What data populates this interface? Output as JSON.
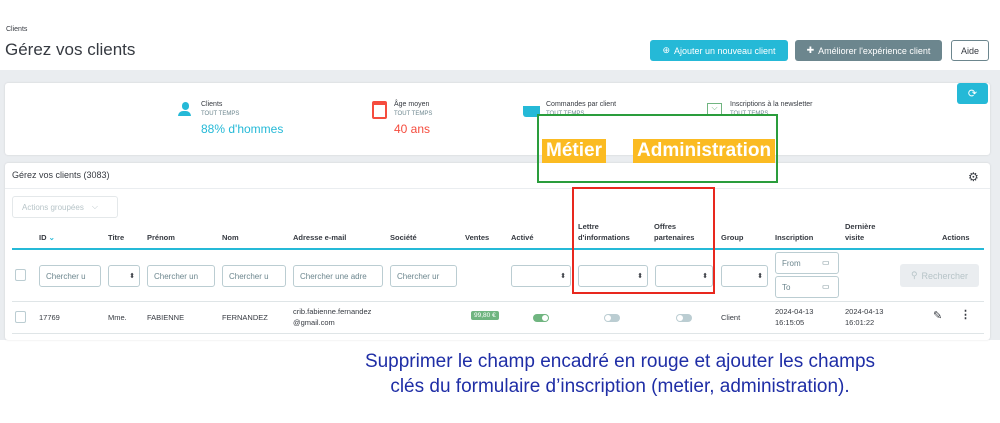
{
  "breadcrumb": "Clients",
  "page_title": "Gérez vos clients",
  "toolbar": {
    "add": "Ajouter un nouveau client",
    "improve": "Améliorer l'expérience client",
    "help": "Aide"
  },
  "kpis": [
    {
      "label": "Clients",
      "period": "TOUT TEMPS",
      "value": "88% d'hommes",
      "icon": "user-icon",
      "color": "#25b9d7"
    },
    {
      "label": "Âge moyen",
      "period": "TOUT TEMPS",
      "value": "40 ans",
      "icon": "calendar-icon",
      "color": "#f54c3e"
    },
    {
      "label": "Commandes par client",
      "period": "TOUT TEMPS",
      "value": "",
      "icon": "basket-icon",
      "color": "#25b9d7"
    },
    {
      "label": "Inscriptions à la newsletter",
      "period": "TOUT TEMPS",
      "value": "",
      "icon": "envelope-icon",
      "color": "#70b580"
    }
  ],
  "annotation_tags": {
    "metier": "Métier",
    "administration": "Administration"
  },
  "table": {
    "title": "Gérez vos clients (3083)",
    "bulk_actions": "Actions groupées",
    "columns": [
      "ID",
      "Titre",
      "Prénom",
      "Nom",
      "Adresse e-mail",
      "Société",
      "Ventes",
      "Activé",
      "Lettre d'informations",
      "Offres partenaires",
      "Group",
      "Inscription",
      "Dernière visite",
      "Actions"
    ],
    "filters": {
      "id": "Chercher u",
      "prenom": "Chercher un",
      "nom": "Chercher u",
      "email": "Chercher une adre",
      "societe": "Chercher ur",
      "from": "From",
      "to": "To",
      "search": "Rechercher"
    },
    "rows": [
      {
        "id": "17769",
        "titre": "Mme.",
        "prenom": "FABIENNE",
        "nom": "FERNANDEZ",
        "email1": "crib.fabienne.fernandez",
        "email2": "@gmail.com",
        "ventes": "99,80 €",
        "active": true,
        "newsletter": false,
        "optin": false,
        "group": "Client",
        "inscription1": "2024-04-13",
        "inscription2": "16:15:05",
        "visite1": "2024-04-13",
        "visite2": "16:01:22"
      }
    ]
  },
  "note": {
    "line1": "Supprimer le champ encadré en rouge et ajouter les champs",
    "line2": "clés du formulaire d’inscription (metier, administration)."
  },
  "colors": {
    "primary": "#25b9d7",
    "secondary": "#6c868e",
    "green_box": "#2a9d3c",
    "red_box": "#e8281e",
    "tag": "#fbbb22",
    "note": "#1f2ea6"
  }
}
